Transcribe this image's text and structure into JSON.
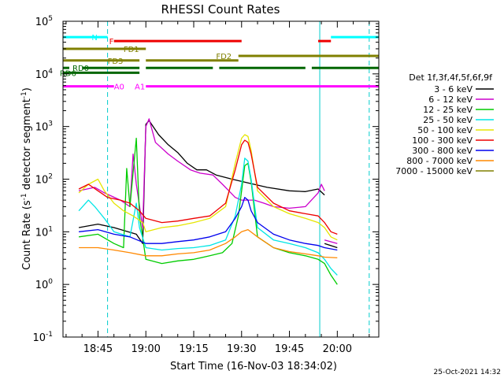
{
  "chart_data": {
    "type": "line",
    "title": "RHESSI Count Rates",
    "xlabel": "Start Time (16-Nov-03 18:34:02)",
    "ylabel": "Count Rate (s⁻¹ detector segment⁻¹)",
    "ylabel_main": "Count Rate (s",
    "ylabel_sup1": "-1",
    "ylabel_mid": " detector segment",
    "ylabel_sup2": "-1",
    "ylabel_end": ")",
    "yscale": "log",
    "ylim": [
      0.1,
      100000
    ],
    "xlim": [
      "18:34:02",
      "20:13:00"
    ],
    "grid": false,
    "legend_position": "right",
    "legend_title": "Det 1f,3f,4f,5f,6f,9f",
    "timestamp": "25-Oct-2021 14:32",
    "x_ticks": [
      "18:45",
      "19:00",
      "19:15",
      "19:30",
      "19:45",
      "20:00"
    ],
    "y_ticks": [
      {
        "base": "10",
        "exp": "-1",
        "value": 0.1
      },
      {
        "base": "10",
        "exp": "0",
        "value": 1
      },
      {
        "base": "10",
        "exp": "1",
        "value": 10
      },
      {
        "base": "10",
        "exp": "2",
        "value": 100
      },
      {
        "base": "10",
        "exp": "3",
        "value": 1000
      },
      {
        "base": "10",
        "exp": "4",
        "value": 10000
      },
      {
        "base": "10",
        "exp": "5",
        "value": 100000
      }
    ],
    "series": [
      {
        "name": "3 - 6 keV",
        "color": "#000000",
        "segments": [
          [
            [
              "18:39",
              12
            ],
            [
              "18:45",
              14
            ],
            [
              "18:50",
              12
            ],
            [
              "18:57",
              9
            ],
            [
              "18:59",
              6
            ],
            [
              "19:00",
              1100
            ],
            [
              "19:01",
              1300
            ],
            [
              "19:04",
              700
            ],
            [
              "19:07",
              450
            ],
            [
              "19:10",
              320
            ],
            [
              "19:13",
              200
            ],
            [
              "19:16",
              150
            ],
            [
              "19:19",
              150
            ],
            [
              "19:22",
              120
            ],
            [
              "19:27",
              100
            ],
            [
              "19:32",
              85
            ],
            [
              "19:38",
              70
            ],
            [
              "19:45",
              60
            ],
            [
              "19:50",
              58
            ],
            [
              "19:54",
              65
            ],
            [
              "19:56",
              50
            ]
          ],
          [
            [
              "19:56",
              6
            ],
            [
              "20:00",
              5
            ]
          ]
        ]
      },
      {
        "name": "6 - 12 keV",
        "color": "#cc00cc",
        "segments": [
          [
            [
              "18:39",
              60
            ],
            [
              "18:44",
              70
            ],
            [
              "18:47",
              55
            ],
            [
              "18:52",
              40
            ],
            [
              "18:55",
              30
            ],
            [
              "18:56",
              300
            ],
            [
              "18:57",
              80
            ],
            [
              "18:59",
              12
            ],
            [
              "19:00",
              1000
            ],
            [
              "19:01",
              1400
            ],
            [
              "19:03",
              500
            ],
            [
              "19:07",
              300
            ],
            [
              "19:10",
              220
            ],
            [
              "19:14",
              150
            ],
            [
              "19:17",
              130
            ],
            [
              "19:21",
              120
            ],
            [
              "19:24",
              80
            ],
            [
              "19:26",
              60
            ],
            [
              "19:28",
              45
            ],
            [
              "19:30",
              40
            ],
            [
              "19:32",
              40
            ],
            [
              "19:34",
              40
            ],
            [
              "19:37",
              35
            ],
            [
              "19:40",
              30
            ],
            [
              "19:45",
              28
            ],
            [
              "19:50",
              30
            ],
            [
              "19:54",
              55
            ],
            [
              "19:55",
              80
            ],
            [
              "19:56",
              60
            ]
          ],
          [
            [
              "19:56",
              7
            ],
            [
              "20:00",
              6
            ]
          ]
        ]
      },
      {
        "name": "12 - 25 keV",
        "color": "#00cc00",
        "segments": [
          [
            [
              "18:39",
              8
            ],
            [
              "18:45",
              9
            ],
            [
              "18:50",
              6
            ],
            [
              "18:53",
              5
            ],
            [
              "18:54",
              160
            ],
            [
              "18:55",
              30
            ],
            [
              "18:57",
              600
            ],
            [
              "18:58",
              20
            ],
            [
              "19:00",
              3
            ],
            [
              "19:05",
              2.5
            ],
            [
              "19:10",
              2.8
            ],
            [
              "19:15",
              3
            ],
            [
              "19:20",
              3.5
            ],
            [
              "19:24",
              4
            ],
            [
              "19:27",
              6
            ],
            [
              "19:29",
              20
            ],
            [
              "19:30",
              60
            ],
            [
              "19:31",
              180
            ],
            [
              "19:32",
              200
            ],
            [
              "19:33",
              90
            ],
            [
              "19:35",
              8
            ],
            [
              "19:40",
              5
            ],
            [
              "19:45",
              4
            ],
            [
              "19:50",
              3.5
            ],
            [
              "19:54",
              3
            ],
            [
              "19:56",
              2.5
            ],
            [
              "19:58",
              1.5
            ],
            [
              "20:00",
              1
            ]
          ]
        ]
      },
      {
        "name": "25 - 50 keV",
        "color": "#00e5e5",
        "segments": [
          [
            [
              "18:39",
              25
            ],
            [
              "18:42",
              40
            ],
            [
              "18:44",
              30
            ],
            [
              "18:47",
              18
            ],
            [
              "18:50",
              10
            ],
            [
              "18:55",
              8
            ],
            [
              "18:57",
              35
            ],
            [
              "18:58",
              12
            ],
            [
              "19:00",
              5
            ],
            [
              "19:05",
              4.5
            ],
            [
              "19:10",
              4.8
            ],
            [
              "19:15",
              5
            ],
            [
              "19:20",
              5.5
            ],
            [
              "19:25",
              7
            ],
            [
              "19:28",
              20
            ],
            [
              "19:30",
              80
            ],
            [
              "19:31",
              250
            ],
            [
              "19:32",
              220
            ],
            [
              "19:33",
              100
            ],
            [
              "19:35",
              12
            ],
            [
              "19:40",
              7
            ],
            [
              "19:45",
              6
            ],
            [
              "19:50",
              5
            ],
            [
              "19:54",
              4
            ],
            [
              "19:56",
              3
            ],
            [
              "19:58",
              2
            ],
            [
              "20:00",
              1.5
            ]
          ]
        ]
      },
      {
        "name": "50 - 100 keV",
        "color": "#e5e500",
        "segments": [
          [
            [
              "18:39",
              55
            ],
            [
              "18:42",
              80
            ],
            [
              "18:45",
              100
            ],
            [
              "18:47",
              60
            ],
            [
              "18:50",
              35
            ],
            [
              "18:53",
              25
            ],
            [
              "18:56",
              20
            ],
            [
              "18:59",
              15
            ],
            [
              "19:00",
              10
            ],
            [
              "19:05",
              12
            ],
            [
              "19:10",
              13
            ],
            [
              "19:15",
              15
            ],
            [
              "19:20",
              18
            ],
            [
              "19:25",
              30
            ],
            [
              "19:28",
              200
            ],
            [
              "19:30",
              600
            ],
            [
              "19:31",
              700
            ],
            [
              "19:32",
              650
            ],
            [
              "19:33",
              350
            ],
            [
              "19:35",
              60
            ],
            [
              "19:40",
              30
            ],
            [
              "19:45",
              22
            ],
            [
              "19:50",
              18
            ],
            [
              "19:54",
              15
            ],
            [
              "19:56",
              12
            ],
            [
              "19:58",
              8
            ],
            [
              "20:00",
              7
            ]
          ]
        ]
      },
      {
        "name": "100 - 300 keV",
        "color": "#ee0000",
        "segments": [
          [
            [
              "18:39",
              65
            ],
            [
              "18:42",
              80
            ],
            [
              "18:45",
              60
            ],
            [
              "18:48",
              45
            ],
            [
              "18:52",
              40
            ],
            [
              "18:55",
              35
            ],
            [
              "18:58",
              25
            ],
            [
              "19:00",
              18
            ],
            [
              "19:05",
              15
            ],
            [
              "19:10",
              16
            ],
            [
              "19:15",
              18
            ],
            [
              "19:20",
              20
            ],
            [
              "19:25",
              35
            ],
            [
              "19:28",
              150
            ],
            [
              "19:30",
              450
            ],
            [
              "19:31",
              550
            ],
            [
              "19:32",
              500
            ],
            [
              "19:33",
              300
            ],
            [
              "19:35",
              70
            ],
            [
              "19:40",
              35
            ],
            [
              "19:45",
              25
            ],
            [
              "19:50",
              22
            ],
            [
              "19:54",
              20
            ],
            [
              "19:56",
              15
            ],
            [
              "19:58",
              10
            ],
            [
              "20:00",
              9
            ]
          ]
        ]
      },
      {
        "name": "300 - 800 keV",
        "color": "#0000ee",
        "segments": [
          [
            [
              "18:39",
              10
            ],
            [
              "18:45",
              11
            ],
            [
              "18:50",
              9
            ],
            [
              "18:55",
              8
            ],
            [
              "19:00",
              6
            ],
            [
              "19:05",
              6
            ],
            [
              "19:10",
              6.5
            ],
            [
              "19:15",
              7
            ],
            [
              "19:20",
              8
            ],
            [
              "19:25",
              10
            ],
            [
              "19:28",
              18
            ],
            [
              "19:30",
              30
            ],
            [
              "19:31",
              45
            ],
            [
              "19:32",
              40
            ],
            [
              "19:33",
              25
            ],
            [
              "19:35",
              15
            ],
            [
              "19:40",
              9
            ],
            [
              "19:45",
              7
            ],
            [
              "19:50",
              6
            ],
            [
              "19:54",
              5.5
            ],
            [
              "19:56",
              5
            ],
            [
              "20:00",
              4.5
            ]
          ]
        ]
      },
      {
        "name": "800 - 7000 keV",
        "color": "#ff8800",
        "segments": [
          [
            [
              "18:39",
              5
            ],
            [
              "18:45",
              5
            ],
            [
              "18:50",
              4.5
            ],
            [
              "18:55",
              4
            ],
            [
              "19:00",
              3.5
            ],
            [
              "19:05",
              3.5
            ],
            [
              "19:10",
              3.8
            ],
            [
              "19:15",
              4
            ],
            [
              "19:20",
              4.5
            ],
            [
              "19:25",
              6
            ],
            [
              "19:28",
              8
            ],
            [
              "19:30",
              10
            ],
            [
              "19:32",
              11
            ],
            [
              "19:35",
              8
            ],
            [
              "19:40",
              5
            ],
            [
              "19:45",
              4.2
            ],
            [
              "19:50",
              3.8
            ],
            [
              "19:54",
              3.5
            ],
            [
              "19:56",
              3.3
            ],
            [
              "20:00",
              3.2
            ]
          ]
        ]
      },
      {
        "name": "7000 - 15000 keV",
        "color": "#808000",
        "segments": []
      }
    ],
    "attenuator_bars": [
      {
        "label": "N",
        "label_at": "18:43",
        "color": "#00ffff",
        "level": 50000,
        "segments": [
          [
            "18:34:02",
            "18:48"
          ],
          [
            "19:58",
            "20:13"
          ]
        ]
      },
      {
        "label": "F",
        "label_at": "18:48:30",
        "color": "#ee0000",
        "level": 42000,
        "segments": [
          [
            "18:50",
            "19:30"
          ],
          [
            "19:54",
            "19:58"
          ]
        ]
      },
      {
        "label": "FD1",
        "label_at": "18:53",
        "color": "#808000",
        "level": 30000,
        "segments": [
          [
            "18:34:02",
            "19:00"
          ]
        ]
      },
      {
        "label": "FD2",
        "label_at": "19:22",
        "color": "#808000",
        "level": 22000,
        "segments": [
          [
            "19:29",
            "20:13"
          ]
        ]
      },
      {
        "label": "FD3",
        "label_at": "18:48",
        "color": "#808000",
        "level": 18000,
        "segments": [
          [
            "18:34:02",
            "18:58"
          ],
          [
            "19:00",
            "19:29"
          ]
        ]
      },
      {
        "label": "RD0",
        "label_at": "18:37",
        "color": "#006600",
        "level": 13000,
        "segments": [
          [
            "18:34:02",
            "18:36"
          ],
          [
            "18:40",
            "18:58"
          ],
          [
            "19:00",
            "19:21"
          ],
          [
            "19:23",
            "19:50"
          ],
          [
            "19:52",
            "20:13"
          ]
        ]
      },
      {
        "label": "RD6",
        "label_at": "18:33",
        "color": "#006600",
        "level": 10500,
        "segments": [
          [
            "18:34:02",
            "18:58"
          ]
        ]
      },
      {
        "label": "A0",
        "label_at": "18:50",
        "color": "#ff00ff",
        "level": 5800,
        "segments": [
          [
            "18:34:02",
            "18:50"
          ],
          [
            "19:00",
            "20:13"
          ]
        ]
      },
      {
        "label": "A1",
        "label_at": "18:56:30",
        "color": "#ff00ff",
        "level": 5800,
        "segments": []
      }
    ],
    "vertical_lines": [
      {
        "time": "18:48",
        "style": "dashed"
      },
      {
        "time": "19:54:30",
        "style": "solid"
      },
      {
        "time": "20:10",
        "style": "dashed"
      }
    ]
  }
}
